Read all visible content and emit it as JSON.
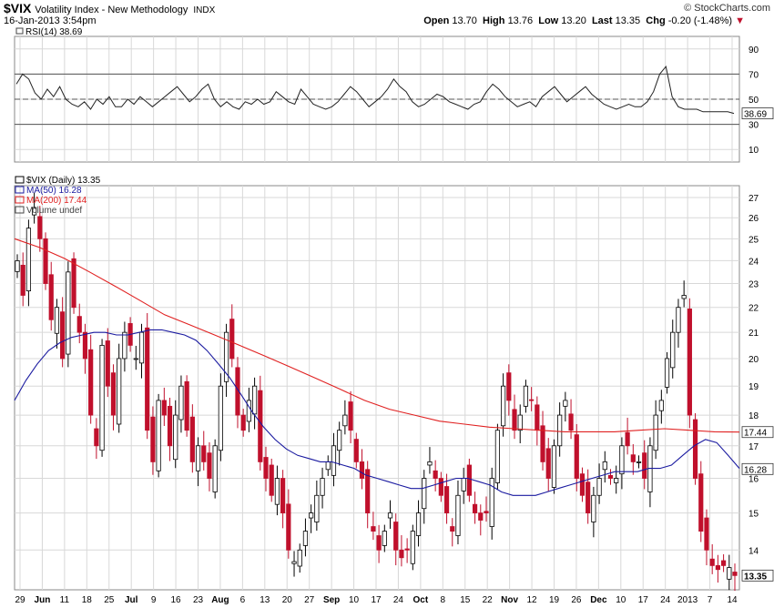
{
  "header": {
    "ticker": "$VIX",
    "name": "Volatility Index - New Methodology",
    "exchange": "INDX",
    "datestamp": "16-Jan-2013 3:54pm",
    "copyright": "© StockCharts.com",
    "open_label": "Open",
    "open": "13.70",
    "high_label": "High",
    "high": "13.76",
    "low_label": "Low",
    "low": "13.20",
    "last_label": "Last",
    "last": "13.35",
    "chg_label": "Chg",
    "chg": "-0.20 (-1.48%)",
    "chg_arrow": "▼"
  },
  "chart_data": [
    {
      "type": "line",
      "panel": "RSI",
      "legend": "RSI(14) 38.69",
      "current_value_label": "38.69",
      "yticks": [
        10,
        30,
        50,
        70,
        90
      ],
      "ylim": [
        0,
        100
      ],
      "reference_lines": [
        30,
        50,
        70
      ],
      "grid": true,
      "values": [
        62,
        70,
        66,
        55,
        50,
        58,
        52,
        60,
        50,
        46,
        44,
        48,
        42,
        50,
        46,
        52,
        44,
        44,
        50,
        46,
        52,
        48,
        44,
        48,
        52,
        56,
        60,
        54,
        48,
        52,
        58,
        62,
        50,
        44,
        48,
        44,
        42,
        48,
        46,
        50,
        46,
        48,
        56,
        52,
        48,
        46,
        58,
        52,
        46,
        44,
        42,
        44,
        48,
        54,
        60,
        56,
        50,
        44,
        48,
        52,
        58,
        66,
        60,
        56,
        48,
        44,
        46,
        50,
        54,
        52,
        48,
        46,
        44,
        42,
        46,
        48,
        56,
        62,
        58,
        52,
        48,
        44,
        46,
        48,
        44,
        52,
        56,
        60,
        54,
        48,
        52,
        56,
        60,
        54,
        50,
        46,
        44,
        42,
        44,
        46,
        44,
        44,
        48,
        56,
        70,
        76,
        52,
        44,
        42,
        42,
        42,
        40,
        40,
        40,
        40,
        40,
        38.69
      ]
    },
    {
      "type": "candlestick",
      "panel": "Price",
      "legend": [
        "$VIX (Daily) 13.35",
        "MA(50) 16.28",
        "MA(200) 17.44",
        "Volume undef"
      ],
      "ylabels": [
        "14",
        "15",
        "16",
        "17",
        "18",
        "19",
        "20",
        "21",
        "22",
        "23",
        "24",
        "25",
        "26",
        "27"
      ],
      "ylim": [
        13,
        27.6
      ],
      "yscale": "log",
      "last_price_label": "13.35",
      "ma50_label": "16.28",
      "ma200_label": "17.44",
      "xlabels": [
        "29",
        "Jun",
        "11",
        "18",
        "25",
        "Jul",
        "9",
        "16",
        "23",
        "Aug",
        "6",
        "13",
        "20",
        "27",
        "Sep",
        "10",
        "17",
        "24",
        "Oct",
        "8",
        "15",
        "22",
        "Nov",
        "12",
        "19",
        "26",
        "Dec",
        "10",
        "17",
        "24",
        "2013",
        "7",
        "14"
      ],
      "grid": true,
      "colors": {
        "up": "#000000",
        "down": "#c0102c",
        "ma50": "#1a1aa0",
        "ma200": "#e02020"
      },
      "closes": [
        24.0,
        22.5,
        25.5,
        26.5,
        25.0,
        23.0,
        21.5,
        22.0,
        20.0,
        23.5,
        22.0,
        21.0,
        20.0,
        18.0,
        17.0,
        20.5,
        19.0,
        18.0,
        20.0,
        21.0,
        20.5,
        20.0,
        21.0,
        17.5,
        16.5,
        18.5,
        18.0,
        17.0,
        18.0,
        19.0,
        17.5,
        16.5,
        17.0,
        16.5,
        16.0,
        17.0,
        19.0,
        21.0,
        20.0,
        18.0,
        17.5,
        18.5,
        19.0,
        16.5,
        16.0,
        15.5,
        16.0,
        15.0,
        14.0,
        13.7,
        14.0,
        14.5,
        15.0,
        15.5,
        16.0,
        16.5,
        17.0,
        17.5,
        18.0,
        17.5,
        16.5,
        16.0,
        15.0,
        14.5,
        14.0,
        14.5,
        15.0,
        14.0,
        13.8,
        14.0,
        14.5,
        15.0,
        16.0,
        16.5,
        16.0,
        15.5,
        15.0,
        14.5,
        15.5,
        16.0,
        15.5,
        15.0,
        14.8,
        15.0,
        16.0,
        17.5,
        19.0,
        18.5,
        17.5,
        18.0,
        19.0,
        18.5,
        17.5,
        16.5,
        16.0,
        17.0,
        18.0,
        18.5,
        17.5,
        16.0,
        15.5,
        15.0,
        15.5,
        16.0,
        16.5,
        16.0,
        16.0,
        17.0,
        17.0,
        16.5,
        16.5,
        16.0,
        17.0,
        18.0,
        18.5,
        20.0,
        21.0,
        22.0,
        22.5,
        18.0,
        16.0,
        14.5,
        14.0,
        13.6,
        13.5,
        13.6,
        13.55,
        13.35
      ],
      "ma50": [
        18.5,
        19.2,
        19.8,
        20.3,
        20.6,
        20.8,
        20.9,
        21.0,
        21.0,
        20.9,
        20.9,
        21.0,
        21.1,
        21.1,
        21.0,
        20.9,
        20.7,
        20.3,
        19.8,
        19.3,
        18.7,
        18.1,
        17.6,
        17.2,
        16.9,
        16.7,
        16.6,
        16.5,
        16.5,
        16.4,
        16.3,
        16.1,
        16.0,
        15.9,
        15.8,
        15.7,
        15.7,
        15.8,
        15.9,
        16.0,
        16.0,
        15.9,
        15.8,
        15.6,
        15.5,
        15.5,
        15.5,
        15.6,
        15.7,
        15.8,
        15.9,
        16.0,
        16.1,
        16.2,
        16.2,
        16.2,
        16.3,
        16.3,
        16.4,
        16.7,
        17.0,
        17.2,
        17.1,
        16.7,
        16.3
      ],
      "ma200": [
        25.0,
        24.6,
        24.1,
        23.5,
        22.9,
        22.3,
        21.7,
        21.3,
        20.9,
        20.5,
        20.1,
        19.7,
        19.3,
        18.9,
        18.5,
        18.2,
        18.0,
        17.8,
        17.7,
        17.6,
        17.55,
        17.5,
        17.45,
        17.45,
        17.45,
        17.5,
        17.55,
        17.5,
        17.45,
        17.44
      ]
    }
  ]
}
